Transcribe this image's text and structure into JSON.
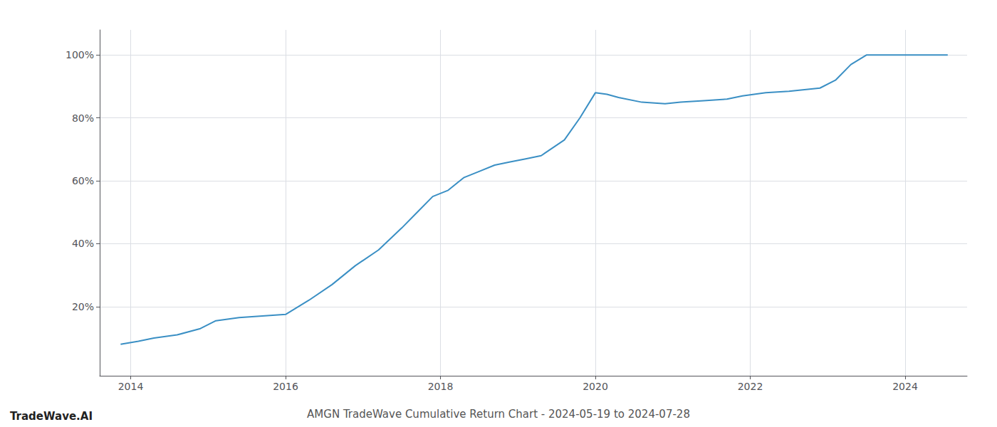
{
  "chart_data": {
    "type": "line",
    "title": "AMGN TradeWave Cumulative Return Chart - 2024-05-19 to 2024-07-28",
    "annotations": [
      "TradeWave.AI"
    ],
    "x": [
      2013.87,
      2014.1,
      2014.3,
      2014.6,
      2014.9,
      2015.1,
      2015.4,
      2015.7,
      2016.0,
      2016.3,
      2016.6,
      2016.9,
      2017.2,
      2017.5,
      2017.7,
      2017.9,
      2018.1,
      2018.3,
      2018.5,
      2018.7,
      2018.9,
      2019.1,
      2019.3,
      2019.6,
      2019.8,
      2020.0,
      2020.15,
      2020.3,
      2020.6,
      2020.9,
      2021.1,
      2021.4,
      2021.7,
      2021.9,
      2022.2,
      2022.5,
      2022.7,
      2022.9,
      2023.1,
      2023.3,
      2023.5,
      2023.65,
      2023.8,
      2024.0,
      2024.2,
      2024.55
    ],
    "values": [
      8,
      9,
      10,
      11,
      13,
      15.5,
      16.5,
      17,
      17.5,
      22,
      27,
      33,
      38,
      45,
      50,
      55,
      57,
      61,
      63,
      65,
      66,
      67,
      68,
      73,
      80,
      88,
      87.5,
      86.5,
      85,
      84.5,
      85,
      85.5,
      86,
      87,
      88,
      88.5,
      89,
      89.5,
      92,
      97,
      100,
      100,
      100,
      100,
      100,
      100
    ],
    "color": "#3a8fc4",
    "xlim": [
      2013.6,
      2024.8
    ],
    "xticks": [
      2014,
      2016,
      2018,
      2020,
      2022,
      2024
    ],
    "ylim": [
      -2,
      108
    ],
    "yticks": [
      {
        "value": 20,
        "label": "20%"
      },
      {
        "value": 40,
        "label": "40%"
      },
      {
        "value": 60,
        "label": "60%"
      },
      {
        "value": 80,
        "label": "80%"
      },
      {
        "value": 100,
        "label": "100%"
      }
    ],
    "grid": true
  }
}
